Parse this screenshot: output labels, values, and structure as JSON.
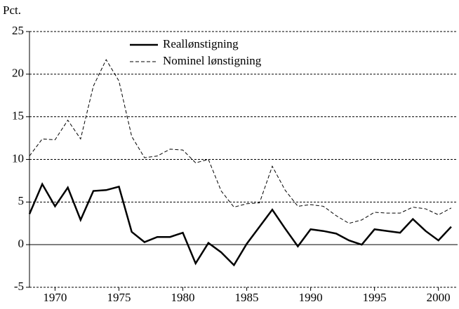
{
  "chart_data": {
    "type": "line",
    "y_label": "Pct.",
    "x": [
      1968,
      1969,
      1970,
      1971,
      1972,
      1973,
      1974,
      1975,
      1976,
      1977,
      1978,
      1979,
      1980,
      1981,
      1982,
      1983,
      1984,
      1985,
      1986,
      1987,
      1988,
      1989,
      1990,
      1991,
      1992,
      1993,
      1994,
      1995,
      1996,
      1997,
      1998,
      1999,
      2000,
      2001
    ],
    "series": [
      {
        "name": "Reallønstigning",
        "color": "#000000",
        "dash": "solid",
        "values": [
          3.6,
          7.1,
          4.5,
          6.7,
          2.9,
          6.3,
          6.4,
          6.8,
          1.5,
          0.3,
          0.9,
          0.9,
          1.4,
          -2.2,
          0.2,
          -0.9,
          -2.4,
          0.1,
          2.1,
          4.1,
          1.9,
          -0.2,
          1.8,
          1.6,
          1.3,
          0.5,
          0.0,
          1.8,
          1.6,
          1.4,
          3.0,
          1.6,
          0.5,
          2.1
        ]
      },
      {
        "name": "Nominel lønstigning",
        "color": "#000000",
        "dash": "dashed",
        "values": [
          10.4,
          12.4,
          12.3,
          14.6,
          12.4,
          18.6,
          21.7,
          19.2,
          12.7,
          10.2,
          10.4,
          11.2,
          11.1,
          9.6,
          10.0,
          6.3,
          4.4,
          4.8,
          4.9,
          9.2,
          6.4,
          4.5,
          4.7,
          4.5,
          3.4,
          2.5,
          2.9,
          3.8,
          3.7,
          3.7,
          4.4,
          4.2,
          3.5,
          4.3
        ]
      }
    ],
    "xlim": [
      1968,
      2001.5
    ],
    "xticks": [
      1970,
      1975,
      1980,
      1985,
      1990,
      1995,
      2000
    ],
    "ylim": [
      -5,
      25
    ],
    "yticks": [
      -5,
      0,
      5,
      10,
      15,
      20,
      25
    ],
    "grid": true
  }
}
